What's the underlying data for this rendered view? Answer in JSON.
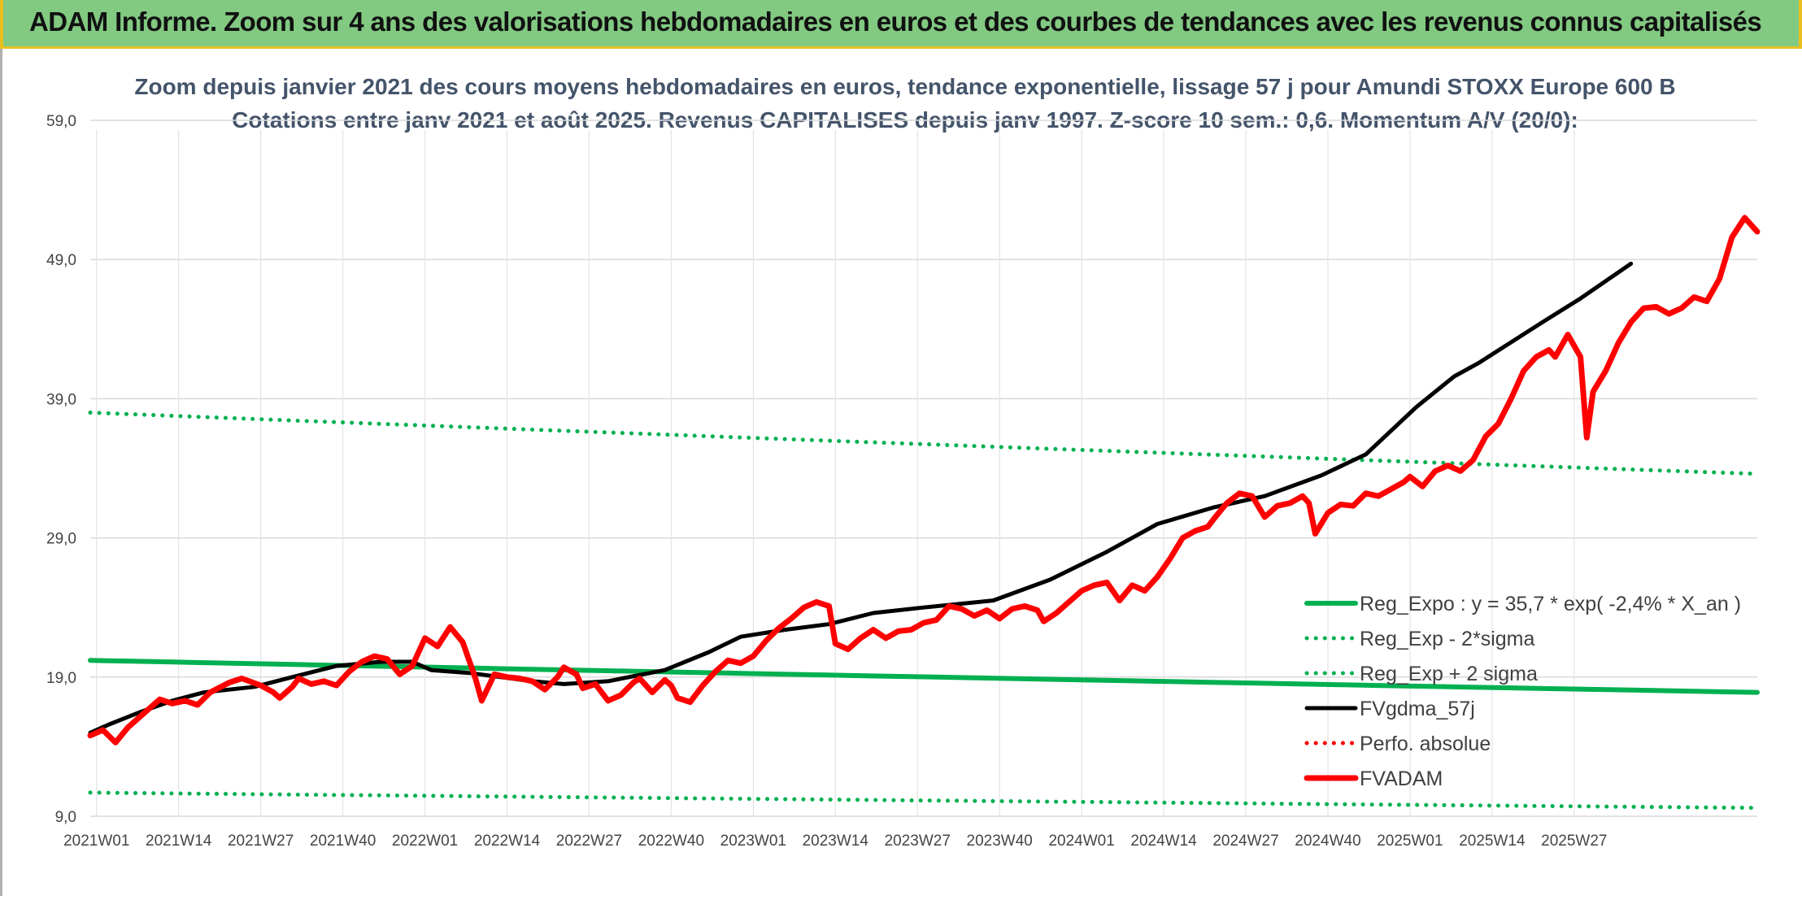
{
  "header": {
    "title": "ADAM Informe. Zoom sur 4 ans des valorisations hebdomadaires en euros et des courbes de tendances avec les revenus connus capitalisés"
  },
  "chart_data": {
    "type": "line",
    "title_lines": [
      "Zoom depuis janvier 2021 des cours moyens hebdomadaires en euros, tendance exponentielle, lissage 57 j pour Amundi STOXX Europe 600 B",
      "Cotations entre janv 2021 et août 2025. Revenus CAPITALISES depuis janv 1997. Z-score 10 sem.: 0,6. Momentum A/V (20/0):"
    ],
    "x_tick_labels": [
      "2021W01",
      "2021W14",
      "2021W27",
      "2021W40",
      "2022W01",
      "2022W14",
      "2022W27",
      "2022W40",
      "2023W01",
      "2023W14",
      "2023W27",
      "2023W40",
      "2024W01",
      "2024W14",
      "2024W27",
      "2024W40",
      "2025W01",
      "2025W14",
      "2025W27"
    ],
    "y_tick_labels": [
      "9,0",
      "19,0",
      "29,0",
      "39,0",
      "49,0",
      "59,0"
    ],
    "ylim": [
      9,
      59
    ],
    "grid": true,
    "legend_position": "right",
    "series": [
      {
        "name": "Reg_Expo : y = 35,7 * exp( -2,4% *  X_an )",
        "color": "#00b050",
        "style": "solid",
        "start": 20.2,
        "end": 17.9
      },
      {
        "name": "Reg_Exp - 2*sigma",
        "color": "#00b050",
        "style": "dotted",
        "start": 10.7,
        "end": 9.6
      },
      {
        "name": "Reg_Exp + 2 sigma",
        "color": "#00b050",
        "style": "dotted",
        "start": 38.0,
        "end": 33.6
      },
      {
        "name": "FVgdma_57j",
        "color": "#000000",
        "style": "solid",
        "points": [
          [
            0,
            15.0
          ],
          [
            3,
            15.6
          ],
          [
            8,
            16.5
          ],
          [
            13,
            17.3
          ],
          [
            18,
            17.9
          ],
          [
            26,
            18.3
          ],
          [
            32,
            19.0
          ],
          [
            39,
            19.8
          ],
          [
            46,
            20.1
          ],
          [
            51,
            20.1
          ],
          [
            54,
            19.5
          ],
          [
            60,
            19.3
          ],
          [
            65,
            19.0
          ],
          [
            70,
            18.7
          ],
          [
            75,
            18.5
          ],
          [
            82,
            18.7
          ],
          [
            91,
            19.5
          ],
          [
            98,
            20.8
          ],
          [
            103,
            21.9
          ],
          [
            110,
            22.4
          ],
          [
            117,
            22.8
          ],
          [
            124,
            23.6
          ],
          [
            132,
            24.0
          ],
          [
            143,
            24.5
          ],
          [
            152,
            26.0
          ],
          [
            161,
            28.0
          ],
          [
            169,
            30.0
          ],
          [
            178,
            31.2
          ],
          [
            186,
            32.0
          ],
          [
            195,
            33.5
          ],
          [
            202,
            35.0
          ],
          [
            210,
            38.4
          ],
          [
            216,
            40.6
          ],
          [
            220,
            41.6
          ],
          [
            230,
            44.5
          ],
          [
            236,
            46.2
          ],
          [
            244,
            48.7
          ]
        ]
      },
      {
        "name": "Perfo. absolue",
        "color": "#ff0000",
        "style": "dotted"
      },
      {
        "name": "FVADAM",
        "color": "#ff0000",
        "style": "solid",
        "points": [
          [
            0,
            14.8
          ],
          [
            2,
            15.2
          ],
          [
            4,
            14.3
          ],
          [
            6,
            15.4
          ],
          [
            9,
            16.6
          ],
          [
            11,
            17.4
          ],
          [
            13,
            17.1
          ],
          [
            15,
            17.3
          ],
          [
            17,
            17.0
          ],
          [
            19,
            17.9
          ],
          [
            22,
            18.6
          ],
          [
            24,
            18.9
          ],
          [
            27,
            18.4
          ],
          [
            29,
            17.9
          ],
          [
            30,
            17.5
          ],
          [
            32,
            18.3
          ],
          [
            33,
            18.9
          ],
          [
            35,
            18.5
          ],
          [
            37,
            18.7
          ],
          [
            39,
            18.4
          ],
          [
            41,
            19.4
          ],
          [
            43,
            20.1
          ],
          [
            45,
            20.5
          ],
          [
            47,
            20.3
          ],
          [
            49,
            19.2
          ],
          [
            51,
            19.8
          ],
          [
            53,
            21.8
          ],
          [
            55,
            21.2
          ],
          [
            57,
            22.6
          ],
          [
            59,
            21.5
          ],
          [
            61,
            18.9
          ],
          [
            62,
            17.3
          ],
          [
            64,
            19.2
          ],
          [
            66,
            19.0
          ],
          [
            68,
            18.9
          ],
          [
            70,
            18.7
          ],
          [
            72,
            18.1
          ],
          [
            74,
            19.0
          ],
          [
            75,
            19.7
          ],
          [
            77,
            19.2
          ],
          [
            78,
            18.2
          ],
          [
            80,
            18.5
          ],
          [
            82,
            17.3
          ],
          [
            84,
            17.7
          ],
          [
            86,
            18.6
          ],
          [
            87,
            18.9
          ],
          [
            89,
            17.9
          ],
          [
            91,
            18.8
          ],
          [
            92,
            18.4
          ],
          [
            93,
            17.5
          ],
          [
            95,
            17.2
          ],
          [
            97,
            18.4
          ],
          [
            99,
            19.4
          ],
          [
            101,
            20.2
          ],
          [
            103,
            20.0
          ],
          [
            105,
            20.5
          ],
          [
            107,
            21.6
          ],
          [
            109,
            22.5
          ],
          [
            111,
            23.2
          ],
          [
            113,
            24.0
          ],
          [
            115,
            24.4
          ],
          [
            117,
            24.1
          ],
          [
            118,
            21.4
          ],
          [
            120,
            21.0
          ],
          [
            122,
            21.8
          ],
          [
            124,
            22.4
          ],
          [
            126,
            21.8
          ],
          [
            128,
            22.3
          ],
          [
            130,
            22.4
          ],
          [
            132,
            22.9
          ],
          [
            134,
            23.1
          ],
          [
            136,
            24.1
          ],
          [
            138,
            23.9
          ],
          [
            140,
            23.4
          ],
          [
            142,
            23.8
          ],
          [
            144,
            23.2
          ],
          [
            146,
            23.9
          ],
          [
            148,
            24.1
          ],
          [
            150,
            23.8
          ],
          [
            151,
            23.0
          ],
          [
            153,
            23.6
          ],
          [
            155,
            24.4
          ],
          [
            157,
            25.2
          ],
          [
            159,
            25.6
          ],
          [
            161,
            25.8
          ],
          [
            163,
            24.5
          ],
          [
            165,
            25.6
          ],
          [
            167,
            25.2
          ],
          [
            169,
            26.2
          ],
          [
            171,
            27.5
          ],
          [
            173,
            29.0
          ],
          [
            175,
            29.5
          ],
          [
            177,
            29.8
          ],
          [
            178,
            30.4
          ],
          [
            180,
            31.5
          ],
          [
            182,
            32.2
          ],
          [
            184,
            32.0
          ],
          [
            186,
            30.5
          ],
          [
            188,
            31.3
          ],
          [
            190,
            31.5
          ],
          [
            192,
            32.0
          ],
          [
            193,
            31.5
          ],
          [
            194,
            29.3
          ],
          [
            196,
            30.8
          ],
          [
            198,
            31.4
          ],
          [
            200,
            31.3
          ],
          [
            202,
            32.2
          ],
          [
            204,
            32.0
          ],
          [
            206,
            32.5
          ],
          [
            208,
            33.0
          ],
          [
            209,
            33.4
          ],
          [
            211,
            32.7
          ],
          [
            213,
            33.8
          ],
          [
            215,
            34.2
          ],
          [
            217,
            33.8
          ],
          [
            219,
            34.6
          ],
          [
            221,
            36.3
          ],
          [
            223,
            37.2
          ],
          [
            225,
            39.0
          ],
          [
            227,
            41.0
          ],
          [
            229,
            42.0
          ],
          [
            231,
            42.5
          ],
          [
            232,
            42.0
          ],
          [
            234,
            43.6
          ],
          [
            236,
            42.0
          ],
          [
            237,
            36.2
          ],
          [
            238,
            39.5
          ],
          [
            240,
            41.0
          ],
          [
            242,
            43.0
          ],
          [
            244,
            44.5
          ],
          [
            246,
            45.5
          ],
          [
            248,
            45.6
          ],
          [
            250,
            45.1
          ],
          [
            252,
            45.5
          ],
          [
            254,
            46.3
          ],
          [
            256,
            46.0
          ],
          [
            258,
            47.6
          ],
          [
            260,
            50.6
          ],
          [
            262,
            52.0
          ],
          [
            264,
            51.0
          ]
        ]
      }
    ]
  }
}
